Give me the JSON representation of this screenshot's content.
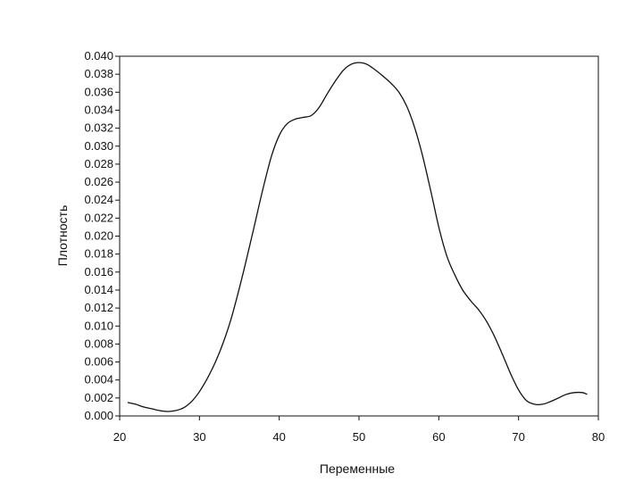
{
  "chart_data": {
    "type": "line",
    "xlabel": "Переменные",
    "ylabel": "Плотность",
    "xlim": [
      20,
      80
    ],
    "ylim": [
      0,
      0.04
    ],
    "x_ticks": [
      20,
      30,
      40,
      50,
      60,
      70,
      80
    ],
    "x_tick_labels": [
      "20",
      "30",
      "40",
      "50",
      "60",
      "70",
      "80"
    ],
    "y_ticks": [
      0,
      0.002,
      0.004,
      0.006,
      0.008,
      0.01,
      0.012,
      0.014,
      0.016,
      0.018,
      0.02,
      0.022,
      0.024,
      0.026,
      0.028,
      0.03,
      0.032,
      0.034,
      0.036,
      0.038,
      0.04
    ],
    "y_tick_labels": [
      "0.000",
      "0.002",
      "0.004",
      "0.006",
      "0.008",
      "0.010",
      "0.012",
      "0.014",
      "0.016",
      "0.018",
      "0.020",
      "0.022",
      "0.024",
      "0.026",
      "0.028",
      "0.030",
      "0.032",
      "0.034",
      "0.036",
      "0.038",
      "0.040"
    ],
    "grid": false,
    "series": [
      {
        "x": [
          21,
          22,
          23,
          24,
          25,
          26,
          27,
          28,
          29,
          30,
          31,
          32,
          33,
          34,
          35,
          36,
          37,
          38,
          39,
          40,
          41,
          42,
          43,
          44,
          45,
          46,
          47,
          48,
          49,
          50,
          51,
          52,
          53,
          54,
          55,
          56,
          57,
          58,
          59,
          60,
          61,
          62,
          63,
          64,
          65,
          66,
          67,
          68,
          69,
          70,
          71,
          72,
          73,
          74,
          75,
          76,
          77,
          78,
          78.6
        ],
        "y": [
          0.0015,
          0.0013,
          0.001,
          0.0008,
          0.0006,
          0.0005,
          0.0006,
          0.0009,
          0.0016,
          0.0027,
          0.0042,
          0.006,
          0.0082,
          0.0109,
          0.0142,
          0.0178,
          0.0216,
          0.0254,
          0.0288,
          0.0312,
          0.0325,
          0.033,
          0.0332,
          0.0334,
          0.0343,
          0.0358,
          0.0372,
          0.0384,
          0.0391,
          0.0393,
          0.0391,
          0.0385,
          0.0378,
          0.037,
          0.036,
          0.0344,
          0.032,
          0.0288,
          0.025,
          0.021,
          0.0178,
          0.0157,
          0.014,
          0.0128,
          0.0118,
          0.0105,
          0.0088,
          0.0068,
          0.0047,
          0.0029,
          0.0017,
          0.0013,
          0.0013,
          0.0016,
          0.002,
          0.0024,
          0.0026,
          0.0026,
          0.0024
        ]
      }
    ],
    "line_color": "#111111"
  }
}
